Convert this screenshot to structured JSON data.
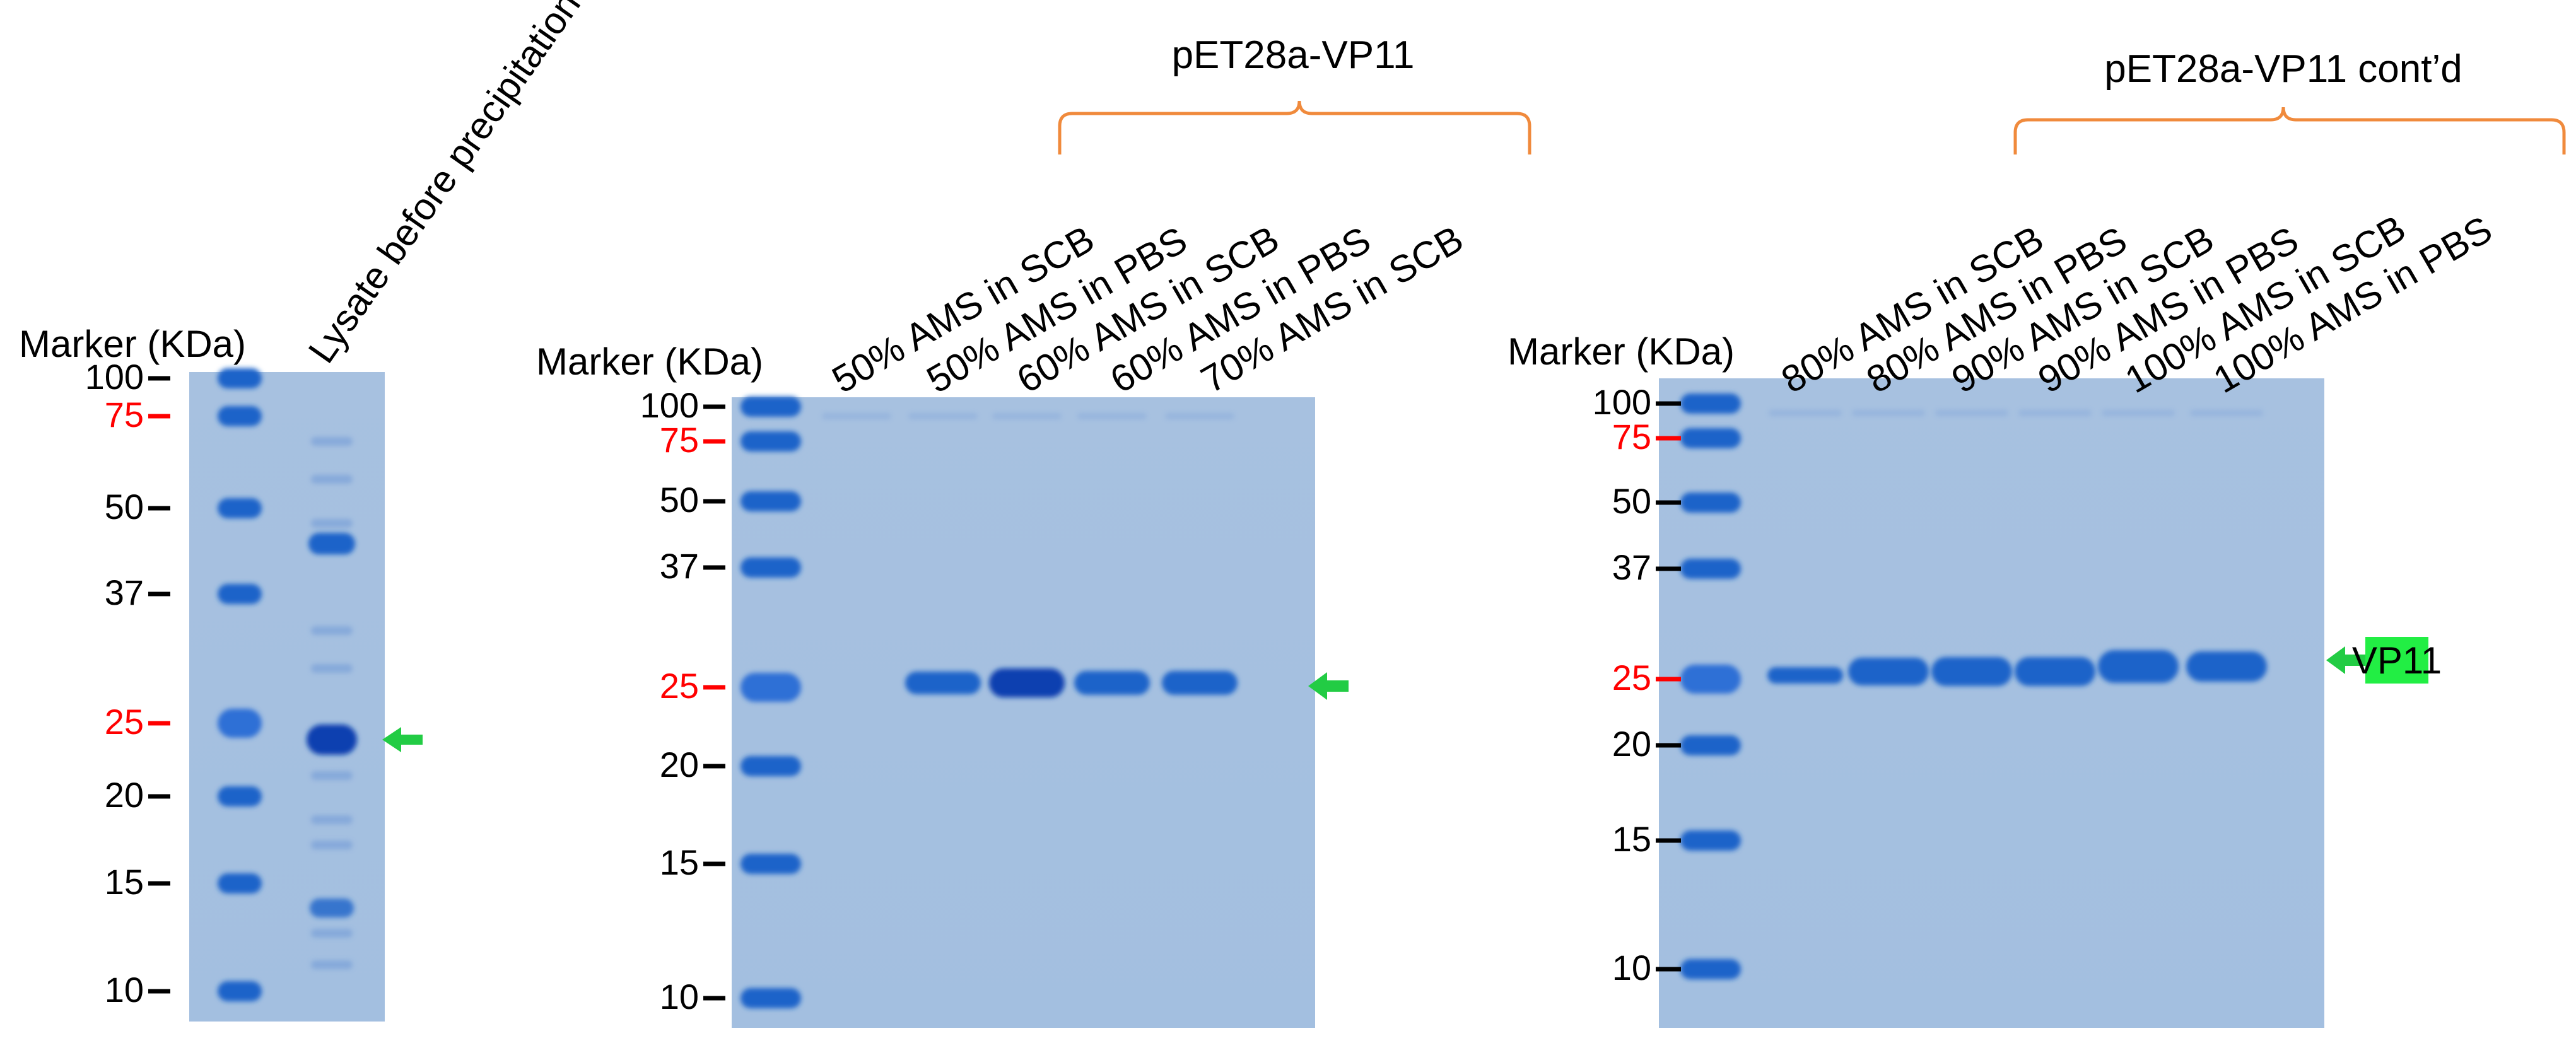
{
  "marker_header": "Marker (KDa)",
  "panel1": {
    "lanes": [
      "Lysate before precipitation"
    ],
    "mw": [
      "100",
      "75",
      "50",
      "37",
      "25",
      "20",
      "15",
      "10"
    ]
  },
  "panel2": {
    "group_title": "pET28a-VP11",
    "lanes": [
      "50% AMS in SCB",
      "50% AMS in PBS",
      "60% AMS in SCB",
      "60% AMS in PBS",
      "70% AMS in SCB"
    ],
    "mw": [
      "100",
      "75",
      "50",
      "37",
      "25",
      "20",
      "15",
      "10"
    ]
  },
  "panel3": {
    "group_title": "pET28a-VP11 cont’d",
    "lanes": [
      "80% AMS in SCB",
      "80% AMS in PBS",
      "90% AMS in SCB",
      "90% AMS in PBS",
      "100% AMS in SCB",
      "100% AMS in PBS"
    ],
    "mw": [
      "100",
      "75",
      "50",
      "37",
      "25",
      "20",
      "15",
      "10"
    ],
    "band_label": "VP11"
  },
  "highlighted_mw": [
    "75",
    "25"
  ],
  "colors": {
    "gel_background": "#a9c3e2",
    "band": "#1a63c9",
    "band_strong": "#0b3fb0",
    "mw_red": "#ff0000",
    "bracket": "#f08a3c",
    "arrow": "#22cc44",
    "label_box": "#22ee44"
  },
  "icons": [
    "band-arrow-icon"
  ]
}
